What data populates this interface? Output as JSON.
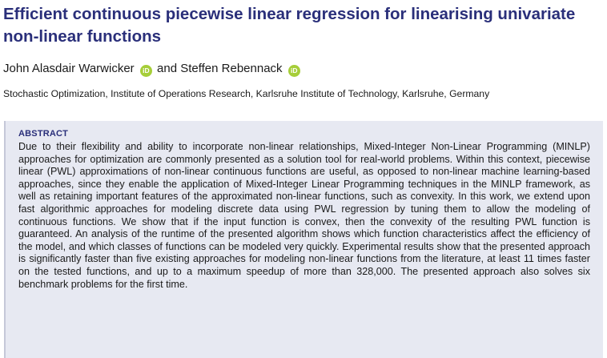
{
  "paper": {
    "title": "Efficient continuous piecewise linear regression for linearising univariate non-linear functions",
    "authors": [
      {
        "name": "John Alasdair Warwicker",
        "orcid_badge": "iD"
      },
      {
        "name": "Steffen Rebennack",
        "orcid_badge": "iD"
      }
    ],
    "author_joiner": "and",
    "affiliation": "Stochastic Optimization, Institute of Operations Research, Karlsruhe Institute of Technology, Karlsruhe, Germany",
    "abstract": {
      "heading": "ABSTRACT",
      "text": "Due to their flexibility and ability to incorporate non-linear relationships, Mixed-Integer Non-Linear Programming (MINLP) approaches for optimization are commonly presented as a solution tool for real-world problems. Within this context, piecewise linear (PWL) approximations of non-linear continuous functions are useful, as opposed to non-linear machine learning-based approaches, since they enable the application of Mixed-Integer Linear Programming techniques in the MINLP framework, as well as retaining important features of the approximated non-linear functions, such as convexity. In this work, we extend upon fast algorithmic approaches for modeling discrete data using PWL regression by tuning them to allow the modeling of continuous functions. We show that if the input function is convex, then the convexity of the resulting PWL function is guaranteed. An analysis of the runtime of the presented algorithm shows which function characteristics affect the efficiency of the model, and which classes of functions can be modeled very quickly. Experimental results show that the presented approach is significantly faster than five existing approaches for modeling non-linear functions from the literature, at least 11 times faster on the tested functions, and up to a maximum speedup of more than 328,000. The presented approach also solves six benchmark problems for the first time."
    }
  },
  "colors": {
    "title": "#2a2f7a",
    "abstract_bg": "#e7e9f2",
    "orcid": "#a6ce39",
    "text": "#1a1a1a"
  }
}
